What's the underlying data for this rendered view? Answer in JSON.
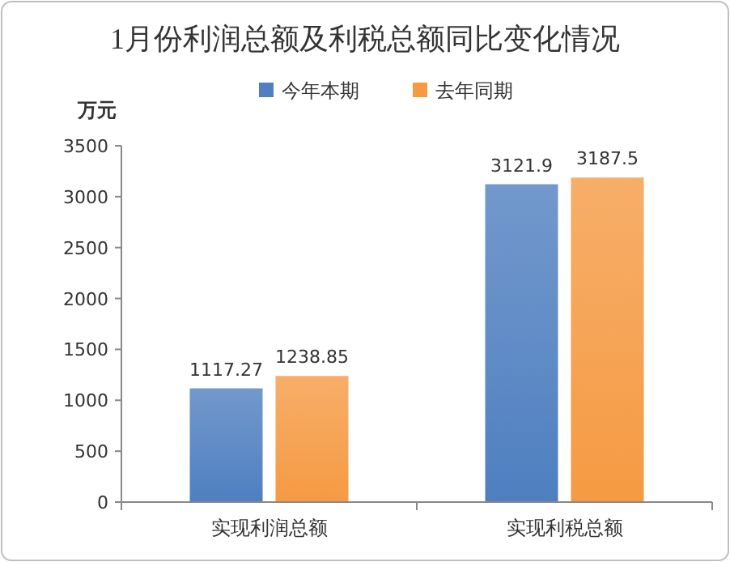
{
  "chart_data": {
    "type": "bar",
    "title": "1月份利润总额及利税总额同比变化情况",
    "ylabel": "万元",
    "categories": [
      "实现利润总额",
      "实现利税总额"
    ],
    "series": [
      {
        "name": "今年本期",
        "color": "#4f7fc0",
        "values": [
          1117.27,
          3121.9
        ]
      },
      {
        "name": "去年同期",
        "color": "#f59a43",
        "values": [
          1238.85,
          3187.5
        ]
      }
    ],
    "ylim": [
      0,
      3500
    ],
    "yticks": [
      0,
      500,
      1000,
      1500,
      2000,
      2500,
      3000,
      3500
    ],
    "data_labels": true,
    "legend": "top",
    "grid": false
  }
}
